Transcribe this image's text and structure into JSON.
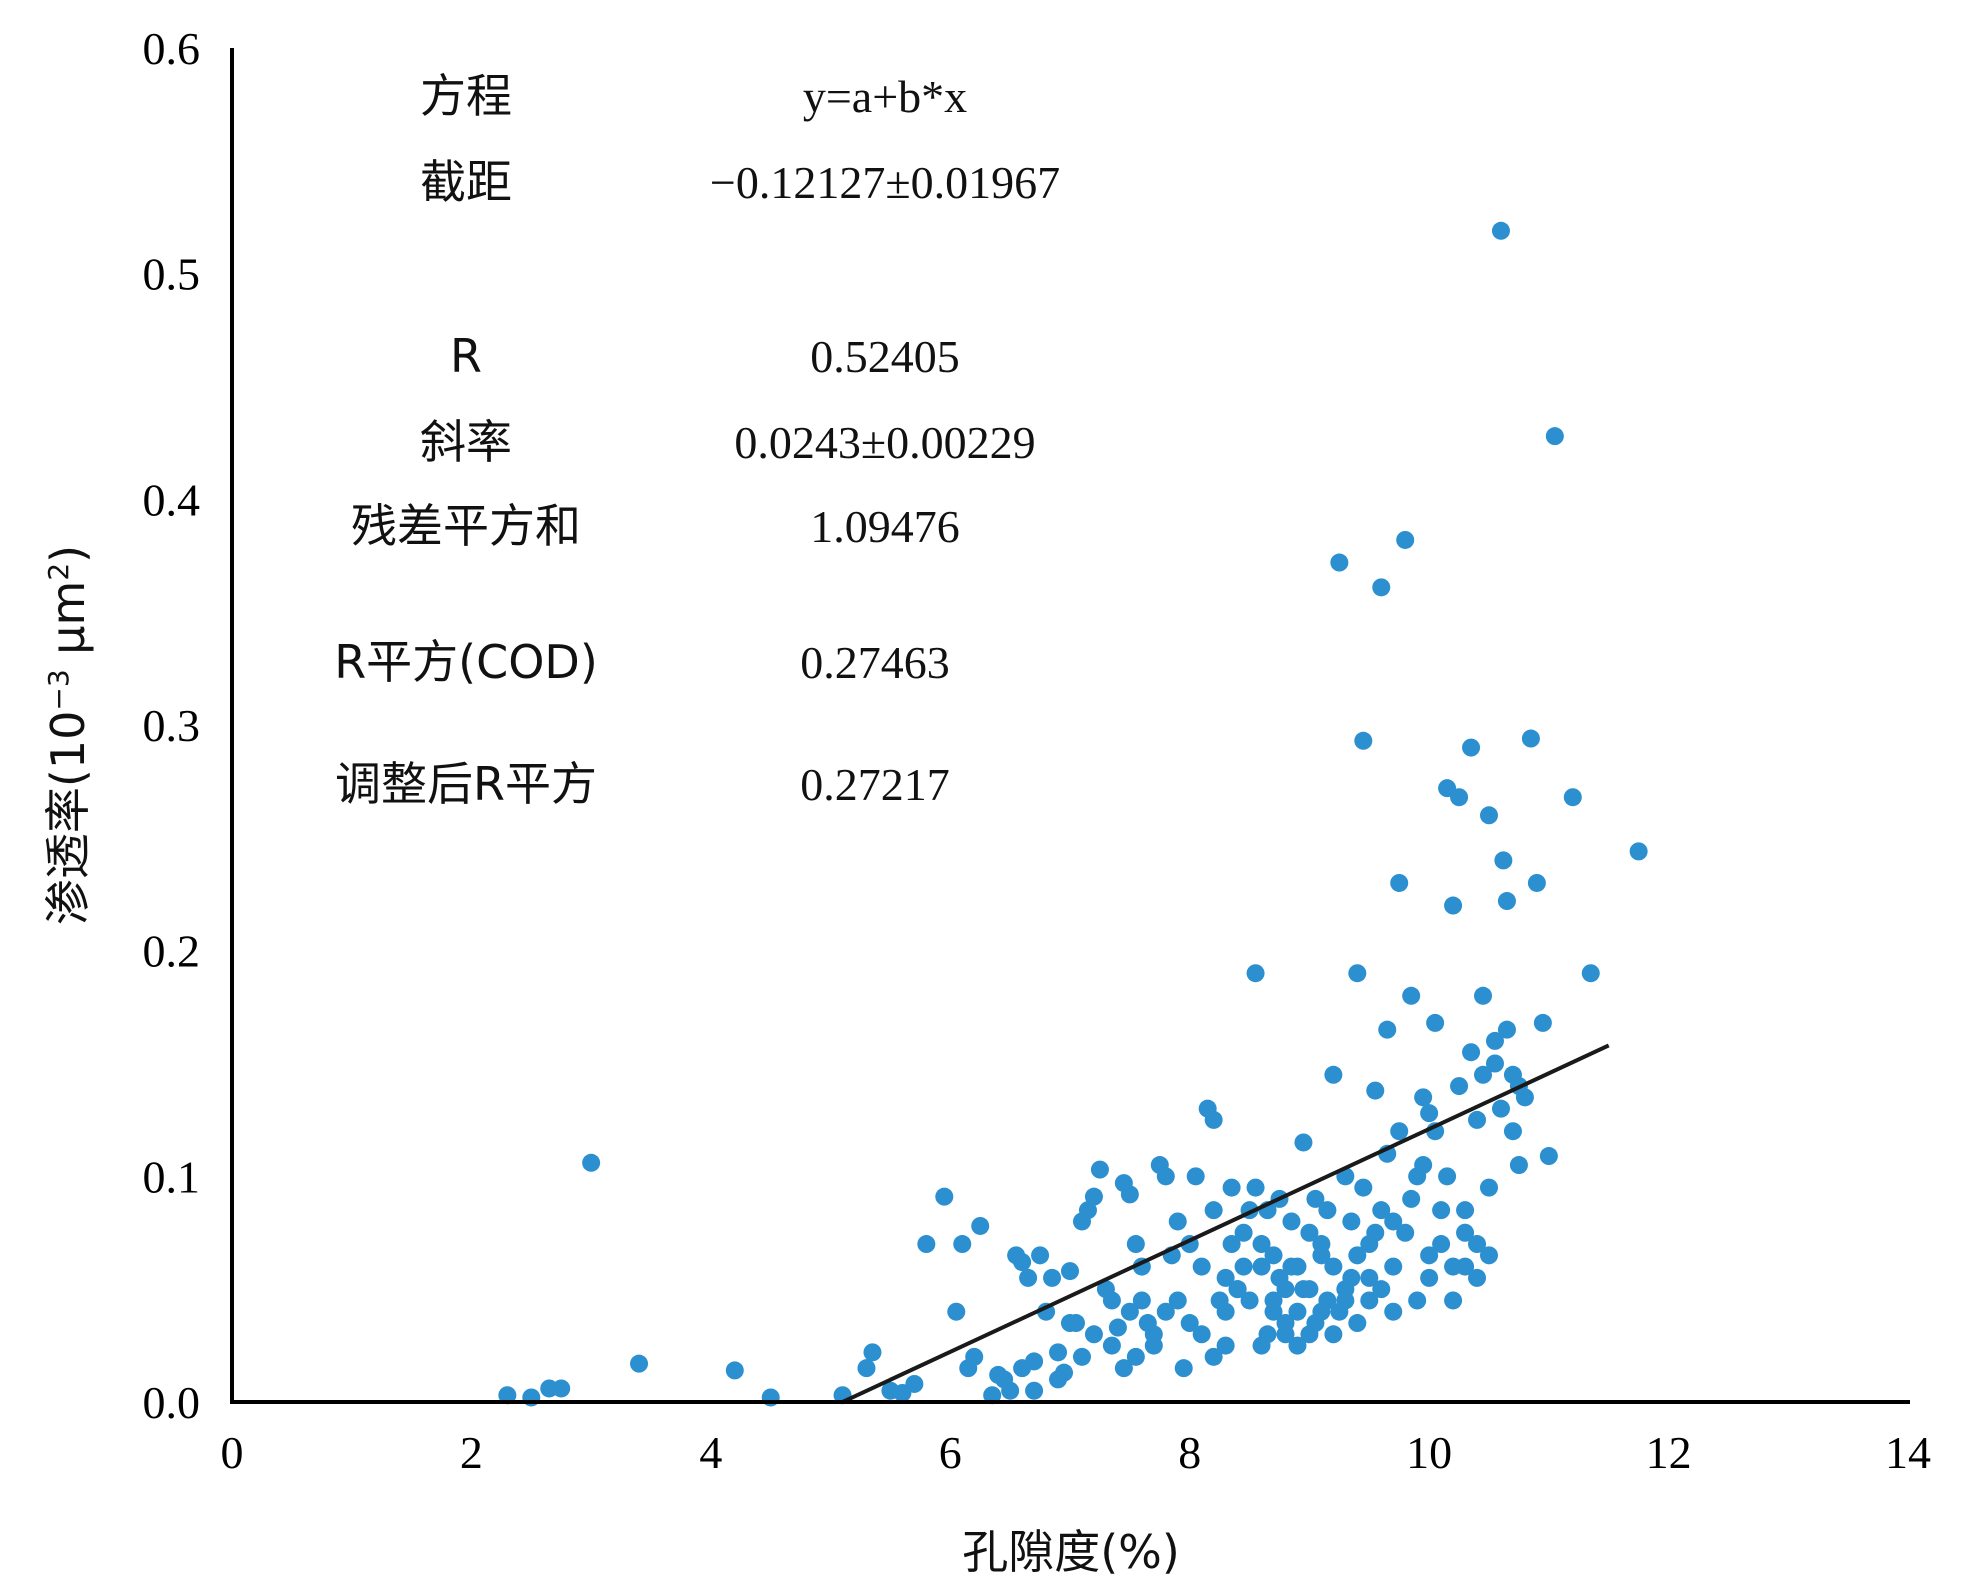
{
  "chart_data": {
    "type": "scatter",
    "xlabel": "孔隙度(%)",
    "ylabel_parts": [
      "渗透率(10",
      "−3",
      " μm",
      "2",
      ")"
    ],
    "xlim": [
      0,
      14
    ],
    "ylim": [
      0,
      0.6
    ],
    "x_ticks": [
      "0",
      "2",
      "4",
      "6",
      "8",
      "10",
      "12",
      "14"
    ],
    "y_ticks": [
      "0.0",
      "0.1",
      "0.2",
      "0.3",
      "0.4",
      "0.5",
      "0.6"
    ],
    "grid": false,
    "colors": {
      "points": "#2b8fd0",
      "fit_line": "#1a1a1a",
      "axes": "#000000"
    },
    "fit_line": {
      "x": [
        5.1,
        11.5
      ],
      "y": [
        0.0,
        0.158
      ]
    },
    "stats": [
      {
        "label": "方程",
        "value": "y=a+b*x"
      },
      {
        "label": "截距",
        "value": "−0.12127±0.01967"
      },
      {
        "label": "R",
        "value": "0.52405"
      },
      {
        "label": "斜率",
        "value": "0.0243±0.00229"
      },
      {
        "label": "残差平方和",
        "value": "1.09476"
      },
      {
        "label": "R平方(COD)",
        "value": "0.27463"
      },
      {
        "label": "调整后R平方",
        "value": "0.27217"
      }
    ],
    "points": [
      [
        2.3,
        0.003
      ],
      [
        2.5,
        0.002
      ],
      [
        2.65,
        0.006
      ],
      [
        2.75,
        0.006
      ],
      [
        3.0,
        0.106
      ],
      [
        3.4,
        0.017
      ],
      [
        4.2,
        0.014
      ],
      [
        4.5,
        0.002
      ],
      [
        5.1,
        0.003
      ],
      [
        5.3,
        0.015
      ],
      [
        5.35,
        0.022
      ],
      [
        5.5,
        0.005
      ],
      [
        5.6,
        0.004
      ],
      [
        5.7,
        0.008
      ],
      [
        5.8,
        0.07
      ],
      [
        5.95,
        0.091
      ],
      [
        6.05,
        0.04
      ],
      [
        6.1,
        0.07
      ],
      [
        6.15,
        0.015
      ],
      [
        6.2,
        0.02
      ],
      [
        6.25,
        0.078
      ],
      [
        6.35,
        0.003
      ],
      [
        6.4,
        0.012
      ],
      [
        6.45,
        0.01
      ],
      [
        6.5,
        0.005
      ],
      [
        6.55,
        0.065
      ],
      [
        6.6,
        0.062
      ],
      [
        6.65,
        0.055
      ],
      [
        6.7,
        0.018
      ],
      [
        6.75,
        0.065
      ],
      [
        6.8,
        0.04
      ],
      [
        6.9,
        0.022
      ],
      [
        6.95,
        0.013
      ],
      [
        7.0,
        0.058
      ],
      [
        7.05,
        0.035
      ],
      [
        7.1,
        0.08
      ],
      [
        7.15,
        0.085
      ],
      [
        7.2,
        0.091
      ],
      [
        7.25,
        0.103
      ],
      [
        7.3,
        0.05
      ],
      [
        7.35,
        0.025
      ],
      [
        7.4,
        0.033
      ],
      [
        7.45,
        0.097
      ],
      [
        7.5,
        0.092
      ],
      [
        7.55,
        0.07
      ],
      [
        7.6,
        0.06
      ],
      [
        7.65,
        0.035
      ],
      [
        7.7,
        0.03
      ],
      [
        7.75,
        0.105
      ],
      [
        7.8,
        0.1
      ],
      [
        7.85,
        0.065
      ],
      [
        7.9,
        0.08
      ],
      [
        7.95,
        0.015
      ],
      [
        8.0,
        0.07
      ],
      [
        8.05,
        0.1
      ],
      [
        8.1,
        0.03
      ],
      [
        8.15,
        0.13
      ],
      [
        8.2,
        0.125
      ],
      [
        8.25,
        0.045
      ],
      [
        8.3,
        0.04
      ],
      [
        8.35,
        0.095
      ],
      [
        8.4,
        0.05
      ],
      [
        8.45,
        0.06
      ],
      [
        8.5,
        0.085
      ],
      [
        8.55,
        0.19
      ],
      [
        8.6,
        0.07
      ],
      [
        8.65,
        0.03
      ],
      [
        8.7,
        0.04
      ],
      [
        8.75,
        0.055
      ],
      [
        8.8,
        0.03
      ],
      [
        8.85,
        0.08
      ],
      [
        8.9,
        0.06
      ],
      [
        8.95,
        0.115
      ],
      [
        9.0,
        0.05
      ],
      [
        9.05,
        0.09
      ],
      [
        9.1,
        0.065
      ],
      [
        9.15,
        0.045
      ],
      [
        9.2,
        0.145
      ],
      [
        9.25,
        0.372
      ],
      [
        9.3,
        0.1
      ],
      [
        9.35,
        0.055
      ],
      [
        9.4,
        0.19
      ],
      [
        9.45,
        0.293
      ],
      [
        9.5,
        0.07
      ],
      [
        9.55,
        0.138
      ],
      [
        9.6,
        0.361
      ],
      [
        9.65,
        0.165
      ],
      [
        9.7,
        0.08
      ],
      [
        9.75,
        0.23
      ],
      [
        9.8,
        0.382
      ],
      [
        9.85,
        0.18
      ],
      [
        9.9,
        0.045
      ],
      [
        9.95,
        0.105
      ],
      [
        10.0,
        0.128
      ],
      [
        10.05,
        0.168
      ],
      [
        10.1,
        0.07
      ],
      [
        10.15,
        0.272
      ],
      [
        10.2,
        0.22
      ],
      [
        10.25,
        0.268
      ],
      [
        10.3,
        0.085
      ],
      [
        10.35,
        0.29
      ],
      [
        10.4,
        0.125
      ],
      [
        10.45,
        0.18
      ],
      [
        10.5,
        0.26
      ],
      [
        10.55,
        0.15
      ],
      [
        10.6,
        0.519
      ],
      [
        10.62,
        0.24
      ],
      [
        10.65,
        0.222
      ],
      [
        10.7,
        0.12
      ],
      [
        10.75,
        0.105
      ],
      [
        10.85,
        0.294
      ],
      [
        10.9,
        0.23
      ],
      [
        10.95,
        0.168
      ],
      [
        11.0,
        0.109
      ],
      [
        11.05,
        0.428
      ],
      [
        11.2,
        0.268
      ],
      [
        11.35,
        0.19
      ],
      [
        11.75,
        0.244
      ],
      [
        8.3,
        0.055
      ],
      [
        8.4,
        0.05
      ],
      [
        8.5,
        0.045
      ],
      [
        8.6,
        0.06
      ],
      [
        8.7,
        0.065
      ],
      [
        8.8,
        0.05
      ],
      [
        8.9,
        0.04
      ],
      [
        9.0,
        0.075
      ],
      [
        9.1,
        0.07
      ],
      [
        9.2,
        0.06
      ],
      [
        9.3,
        0.05
      ],
      [
        9.4,
        0.065
      ],
      [
        9.5,
        0.045
      ],
      [
        9.6,
        0.085
      ],
      [
        9.7,
        0.06
      ],
      [
        9.8,
        0.075
      ],
      [
        9.9,
        0.1
      ],
      [
        10.0,
        0.065
      ],
      [
        10.1,
        0.085
      ],
      [
        10.2,
        0.06
      ],
      [
        10.3,
        0.075
      ],
      [
        10.4,
        0.07
      ],
      [
        10.5,
        0.095
      ],
      [
        10.6,
        0.13
      ],
      [
        10.7,
        0.145
      ],
      [
        10.8,
        0.135
      ],
      [
        8.2,
        0.085
      ],
      [
        8.35,
        0.07
      ],
      [
        8.45,
        0.075
      ],
      [
        8.55,
        0.095
      ],
      [
        8.65,
        0.085
      ],
      [
        8.75,
        0.09
      ],
      [
        8.85,
        0.06
      ],
      [
        8.95,
        0.05
      ],
      [
        9.05,
        0.035
      ],
      [
        9.15,
        0.085
      ],
      [
        9.25,
        0.04
      ],
      [
        9.35,
        0.08
      ],
      [
        9.45,
        0.095
      ],
      [
        9.55,
        0.075
      ],
      [
        9.65,
        0.11
      ],
      [
        9.75,
        0.12
      ],
      [
        9.85,
        0.09
      ],
      [
        9.95,
        0.135
      ],
      [
        10.05,
        0.12
      ],
      [
        10.15,
        0.1
      ],
      [
        10.25,
        0.14
      ],
      [
        10.35,
        0.155
      ],
      [
        10.45,
        0.145
      ],
      [
        10.55,
        0.16
      ],
      [
        10.65,
        0.165
      ],
      [
        10.75,
        0.14
      ],
      [
        7.5,
        0.04
      ],
      [
        7.6,
        0.045
      ],
      [
        7.7,
        0.025
      ],
      [
        7.8,
        0.04
      ],
      [
        7.9,
        0.045
      ],
      [
        8.0,
        0.035
      ],
      [
        8.1,
        0.06
      ],
      [
        8.2,
        0.02
      ],
      [
        8.3,
        0.025
      ],
      [
        7.0,
        0.035
      ],
      [
        7.1,
        0.02
      ],
      [
        7.2,
        0.03
      ],
      [
        6.9,
        0.01
      ],
      [
        6.6,
        0.015
      ],
      [
        6.7,
        0.005
      ],
      [
        6.85,
        0.055
      ],
      [
        7.35,
        0.045
      ],
      [
        7.45,
        0.015
      ],
      [
        7.55,
        0.02
      ],
      [
        8.6,
        0.025
      ],
      [
        8.7,
        0.045
      ],
      [
        8.8,
        0.035
      ],
      [
        8.9,
        0.025
      ],
      [
        9.0,
        0.03
      ],
      [
        9.1,
        0.04
      ],
      [
        9.2,
        0.03
      ],
      [
        9.3,
        0.045
      ],
      [
        9.4,
        0.035
      ],
      [
        9.5,
        0.055
      ],
      [
        9.6,
        0.05
      ],
      [
        9.7,
        0.04
      ],
      [
        10.0,
        0.055
      ],
      [
        10.2,
        0.045
      ],
      [
        10.3,
        0.06
      ],
      [
        10.4,
        0.055
      ],
      [
        10.5,
        0.065
      ]
    ]
  }
}
